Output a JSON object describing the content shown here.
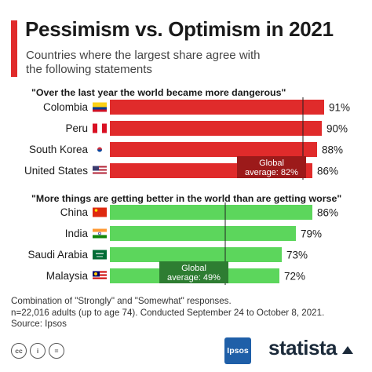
{
  "title": "Pessimism vs. Optimism in 2021",
  "subtitle": "Countries where the largest share agree with the following statements",
  "chart_data": [
    {
      "type": "bar",
      "orientation": "horizontal",
      "title": "\"Over the last year the world became more dangerous\"",
      "categories": [
        "Colombia",
        "Peru",
        "South Korea",
        "United States"
      ],
      "values": [
        91,
        90,
        88,
        86
      ],
      "value_labels": [
        "91%",
        "90%",
        "88%",
        "86%"
      ],
      "flags": [
        "colombia",
        "peru",
        "south-korea",
        "united-states"
      ],
      "bar_color": "#e02b2b",
      "xlim": [
        0,
        100
      ],
      "reference_line": {
        "value": 82,
        "label_top": "Global",
        "label_bottom": "average: 82%",
        "label_color": "#9c1a1a"
      }
    },
    {
      "type": "bar",
      "orientation": "horizontal",
      "title": "\"More things are getting better in the world than are getting worse\"",
      "categories": [
        "China",
        "India",
        "Saudi Arabia",
        "Malaysia"
      ],
      "values": [
        86,
        79,
        73,
        72
      ],
      "value_labels": [
        "86%",
        "79%",
        "73%",
        "72%"
      ],
      "flags": [
        "china",
        "india",
        "saudi-arabia",
        "malaysia"
      ],
      "bar_color": "#5cd65c",
      "xlim": [
        0,
        100
      ],
      "reference_line": {
        "value": 49,
        "label_top": "Global",
        "label_bottom": "average: 49%",
        "label_color": "#2e7d32"
      }
    }
  ],
  "footnote": {
    "line1": "Combination of \"Strongly\" and \"Somewhat\" responses.",
    "line2": "n=22,016 adults (up to age 74). Conducted September 24 to October 8, 2021.",
    "line3": "Source: Ipsos"
  },
  "footer": {
    "license_icons": [
      "cc",
      "i",
      "="
    ],
    "source_logo": "Ipsos",
    "brand": "statista"
  }
}
